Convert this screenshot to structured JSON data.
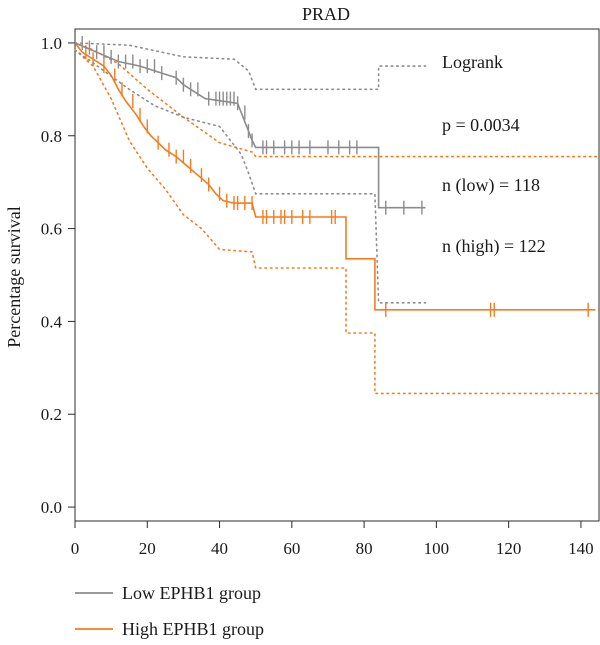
{
  "chart_data": {
    "type": "line",
    "title": "PRAD",
    "xlabel": "",
    "ylabel": "Percentage survival",
    "xlim": [
      0,
      145
    ],
    "ylim": [
      -0.03,
      1.03
    ],
    "xticks": [
      0,
      20,
      40,
      60,
      80,
      100,
      120,
      140
    ],
    "yticks": [
      0.0,
      0.2,
      0.4,
      0.6,
      0.8,
      1.0
    ],
    "ytick_labels": [
      "0.0",
      "0.2",
      "0.4",
      "0.6",
      "0.8",
      "1.0"
    ],
    "grid": false,
    "legend_position": "bottom-left",
    "annotations": [
      "Logrank",
      "p = 0.0034",
      "n (low) = 118",
      "n (high) = 122"
    ],
    "colors": {
      "low": "#8c8c8c",
      "high": "#f47c20"
    },
    "series": [
      {
        "name": "Low EPHB1 group",
        "color": "#8c8c8c",
        "step": [
          [
            0,
            1.0
          ],
          [
            3,
            0.99
          ],
          [
            6,
            0.98
          ],
          [
            9,
            0.97
          ],
          [
            12,
            0.96
          ],
          [
            18,
            0.95
          ],
          [
            24,
            0.935
          ],
          [
            28,
            0.925
          ],
          [
            30,
            0.91
          ],
          [
            32,
            0.9
          ],
          [
            36,
            0.88
          ],
          [
            45,
            0.87
          ],
          [
            46,
            0.85
          ],
          [
            48,
            0.81
          ],
          [
            49,
            0.79
          ],
          [
            50,
            0.775
          ],
          [
            84,
            0.775
          ],
          [
            84,
            0.645
          ],
          [
            97,
            0.645
          ]
        ],
        "censor_x": [
          2,
          4,
          6,
          8,
          10,
          12,
          14,
          16,
          18,
          20,
          22,
          24,
          28,
          30,
          32,
          34,
          37,
          39,
          40,
          41,
          42,
          43,
          44,
          45,
          47,
          48,
          49,
          52,
          53,
          55,
          58,
          60,
          62,
          65,
          70,
          73,
          76,
          78,
          86,
          91,
          96
        ],
        "ci_upper": [
          [
            0,
            1.0
          ],
          [
            15,
            0.995
          ],
          [
            30,
            0.97
          ],
          [
            44,
            0.965
          ],
          [
            48,
            0.94
          ],
          [
            50,
            0.9
          ],
          [
            84,
            0.9
          ],
          [
            84,
            0.95
          ],
          [
            97,
            0.95
          ]
        ],
        "ci_lower": [
          [
            0,
            0.985
          ],
          [
            8,
            0.94
          ],
          [
            15,
            0.9
          ],
          [
            22,
            0.865
          ],
          [
            30,
            0.84
          ],
          [
            40,
            0.82
          ],
          [
            46,
            0.76
          ],
          [
            48,
            0.72
          ],
          [
            50,
            0.675
          ],
          [
            83,
            0.675
          ],
          [
            84,
            0.44
          ],
          [
            97,
            0.44
          ]
        ]
      },
      {
        "name": "High EPHB1 group",
        "color": "#f47c20",
        "step": [
          [
            0,
            1.0
          ],
          [
            2,
            0.98
          ],
          [
            5,
            0.965
          ],
          [
            8,
            0.95
          ],
          [
            10,
            0.93
          ],
          [
            12,
            0.9
          ],
          [
            14,
            0.875
          ],
          [
            17,
            0.845
          ],
          [
            19,
            0.82
          ],
          [
            21,
            0.8
          ],
          [
            23,
            0.785
          ],
          [
            25,
            0.77
          ],
          [
            28,
            0.755
          ],
          [
            31,
            0.735
          ],
          [
            34,
            0.715
          ],
          [
            37,
            0.695
          ],
          [
            39,
            0.675
          ],
          [
            41,
            0.66
          ],
          [
            44,
            0.655
          ],
          [
            49,
            0.655
          ],
          [
            50,
            0.625
          ],
          [
            75,
            0.625
          ],
          [
            75,
            0.535
          ],
          [
            83,
            0.535
          ],
          [
            83,
            0.425
          ],
          [
            144,
            0.425
          ]
        ],
        "censor_x": [
          3,
          5,
          8,
          11,
          13,
          16,
          18,
          20,
          23,
          26,
          28,
          30,
          32,
          35,
          37,
          40,
          42,
          44,
          45,
          47,
          49,
          52,
          53,
          55,
          57,
          58,
          60,
          63,
          65,
          71,
          72,
          86,
          115,
          116,
          142
        ],
        "ci_upper": [
          [
            0,
            1.0
          ],
          [
            5,
            0.985
          ],
          [
            12,
            0.955
          ],
          [
            20,
            0.9
          ],
          [
            30,
            0.84
          ],
          [
            40,
            0.785
          ],
          [
            49,
            0.765
          ],
          [
            50,
            0.755
          ],
          [
            145,
            0.755
          ]
        ],
        "ci_lower": [
          [
            0,
            0.985
          ],
          [
            5,
            0.95
          ],
          [
            10,
            0.88
          ],
          [
            15,
            0.79
          ],
          [
            20,
            0.73
          ],
          [
            25,
            0.685
          ],
          [
            30,
            0.63
          ],
          [
            35,
            0.6
          ],
          [
            40,
            0.555
          ],
          [
            49,
            0.55
          ],
          [
            50,
            0.515
          ],
          [
            75,
            0.515
          ],
          [
            75,
            0.375
          ],
          [
            83,
            0.375
          ],
          [
            83,
            0.245
          ],
          [
            145,
            0.245
          ]
        ]
      }
    ]
  }
}
